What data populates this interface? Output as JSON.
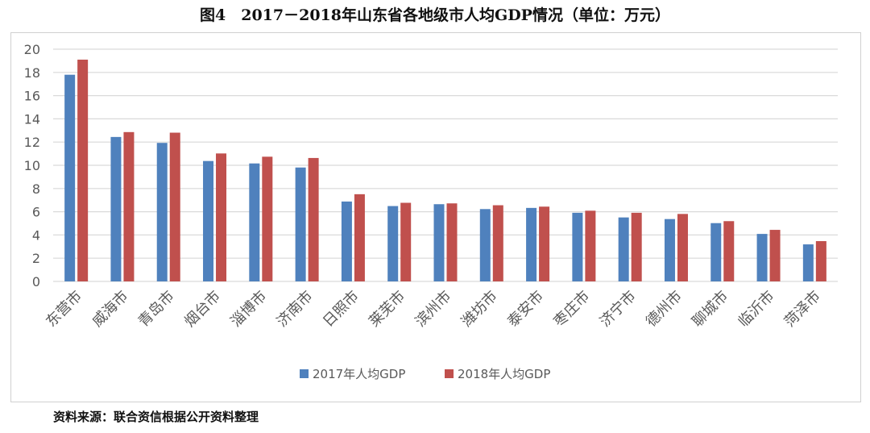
{
  "chart_data": {
    "type": "bar",
    "title": "图4　2017－2018年山东省各地级市人均GDP情况（单位：万元）",
    "xlabel": "",
    "ylabel": "",
    "ylim": [
      0,
      20
    ],
    "yticks": [
      0,
      2,
      4,
      6,
      8,
      10,
      12,
      14,
      16,
      18,
      20
    ],
    "grid": true,
    "legend_position": "bottom",
    "categories": [
      "东营市",
      "威海市",
      "青岛市",
      "烟台市",
      "淄博市",
      "济南市",
      "日照市",
      "莱芜市",
      "滨州市",
      "潍坊市",
      "泰安市",
      "枣庄市",
      "济宁市",
      "德州市",
      "聊城市",
      "临沂市",
      "菏泽市"
    ],
    "series": [
      {
        "name": "2017年人均GDP",
        "color": "#4f81bd",
        "values": [
          17.8,
          12.44,
          11.93,
          10.37,
          10.16,
          9.81,
          6.88,
          6.49,
          6.65,
          6.23,
          6.33,
          5.91,
          5.51,
          5.37,
          5.02,
          4.09,
          3.19
        ]
      },
      {
        "name": "2018年人均GDP",
        "color": "#c0504d",
        "values": [
          19.1,
          12.86,
          12.81,
          11.02,
          10.74,
          10.63,
          7.51,
          6.77,
          6.72,
          6.56,
          6.44,
          6.09,
          5.91,
          5.81,
          5.19,
          4.44,
          3.47
        ]
      }
    ]
  },
  "source": "资料来源：联合资信根据公开资料整理"
}
